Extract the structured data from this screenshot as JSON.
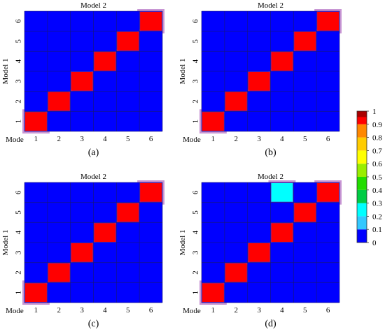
{
  "colors": {
    "grid": "#1a1a66",
    "cell_glow": "#9a3fb0",
    "background": "#ffffff"
  },
  "chart_data": [
    {
      "type": "heatmap",
      "panel_label": "(a)",
      "title": "Model 2",
      "ylabel": "Model 1",
      "corner_label": "Mode",
      "x_ticks": [
        "1",
        "2",
        "3",
        "4",
        "5",
        "6"
      ],
      "y_ticks": [
        "1",
        "2",
        "3",
        "4",
        "5",
        "6"
      ],
      "values": [
        [
          1,
          0,
          0,
          0,
          0,
          0
        ],
        [
          0,
          1,
          0,
          0,
          0,
          0
        ],
        [
          0,
          0,
          1,
          0,
          0,
          0
        ],
        [
          0,
          0,
          0,
          1,
          0,
          0
        ],
        [
          0,
          0,
          0,
          0,
          1,
          0
        ],
        [
          0,
          0,
          0,
          0,
          0,
          1
        ]
      ]
    },
    {
      "type": "heatmap",
      "panel_label": "(b)",
      "title": "Model 2",
      "ylabel": "Model 1",
      "corner_label": "Mode",
      "x_ticks": [
        "1",
        "2",
        "3",
        "4",
        "5",
        "6"
      ],
      "y_ticks": [
        "1",
        "2",
        "3",
        "4",
        "5",
        "6"
      ],
      "values": [
        [
          1,
          0,
          0,
          0,
          0,
          0
        ],
        [
          0,
          1,
          0,
          0,
          0,
          0
        ],
        [
          0,
          0,
          1,
          0,
          0,
          0
        ],
        [
          0,
          0,
          0,
          1,
          0,
          0
        ],
        [
          0,
          0,
          0,
          0,
          1,
          0
        ],
        [
          0,
          0,
          0,
          0,
          0,
          1
        ]
      ]
    },
    {
      "type": "heatmap",
      "panel_label": "(c)",
      "title": "Model 2",
      "ylabel": "Model 1",
      "corner_label": "Mode",
      "x_ticks": [
        "1",
        "2",
        "3",
        "4",
        "5",
        "6"
      ],
      "y_ticks": [
        "1",
        "2",
        "3",
        "4",
        "5",
        "6"
      ],
      "values": [
        [
          1,
          0,
          0,
          0,
          0,
          0
        ],
        [
          0,
          1,
          0,
          0,
          0,
          0
        ],
        [
          0,
          0,
          1,
          0,
          0,
          0
        ],
        [
          0,
          0,
          0,
          1,
          0,
          0
        ],
        [
          0,
          0,
          0,
          0,
          1,
          0
        ],
        [
          0,
          0,
          0,
          0,
          0,
          1
        ]
      ]
    },
    {
      "type": "heatmap",
      "panel_label": "(d)",
      "title": "Model 2",
      "ylabel": "Model 1",
      "corner_label": "Mode",
      "x_ticks": [
        "1",
        "2",
        "3",
        "4",
        "5",
        "6"
      ],
      "y_ticks": [
        "1",
        "2",
        "3",
        "4",
        "5",
        "6"
      ],
      "values": [
        [
          1,
          0,
          0,
          0,
          0,
          0
        ],
        [
          0,
          1,
          0,
          0,
          0,
          0
        ],
        [
          0,
          0,
          1,
          0,
          0,
          0
        ],
        [
          0,
          0,
          0,
          1,
          0,
          0
        ],
        [
          0,
          0,
          0,
          0,
          1,
          0
        ],
        [
          0,
          0,
          0,
          0.3,
          0,
          1
        ]
      ]
    }
  ],
  "colorbar": {
    "ticks": [
      "1",
      "0.9",
      "0.8",
      "0.7",
      "0.6",
      "0.5",
      "0.4",
      "0.3",
      "0.2",
      "0.1",
      "0"
    ],
    "colors": [
      "#0000ff",
      "#2f8cff",
      "#33c8ff",
      "#00ffff",
      "#00cc44",
      "#22dd00",
      "#99ee00",
      "#ffff00",
      "#ffcc00",
      "#ff8800",
      "#ff0000",
      "#aa0000"
    ]
  }
}
